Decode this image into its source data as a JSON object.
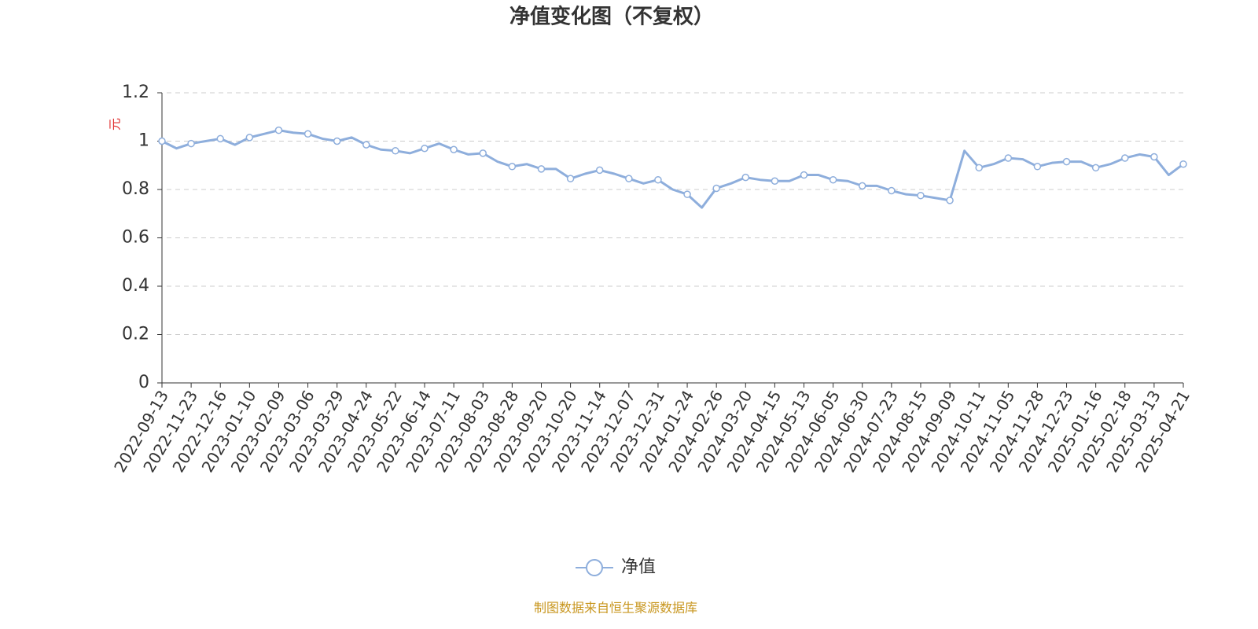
{
  "chart_data": {
    "type": "line",
    "title": "净值变化图（不复权）",
    "y_label": "元",
    "source": "制图数据来自恒生聚源数据库",
    "categories": [
      "2022-09-13",
      null,
      "2022-11-23",
      null,
      "2022-12-16",
      null,
      "2023-01-10",
      null,
      "2023-02-09",
      null,
      "2023-03-06",
      null,
      "2023-03-29",
      null,
      "2023-04-24",
      null,
      "2023-05-22",
      null,
      "2023-06-14",
      null,
      "2023-07-11",
      null,
      "2023-08-03",
      null,
      "2023-08-28",
      null,
      "2023-09-20",
      null,
      "2023-10-20",
      null,
      "2023-11-14",
      null,
      "2023-12-07",
      null,
      "2023-12-31",
      null,
      "2024-01-24",
      null,
      "2024-02-26",
      null,
      "2024-03-20",
      null,
      "2024-04-15",
      null,
      "2024-05-13",
      null,
      "2024-06-05",
      null,
      "2024-06-30",
      null,
      "2024-07-23",
      null,
      "2024-08-15",
      null,
      "2024-09-09",
      null,
      "2024-10-11",
      null,
      "2024-11-05",
      null,
      "2024-11-28",
      null,
      "2024-12-23",
      null,
      "2025-01-16",
      null,
      "2025-02-18",
      null,
      "2025-03-13",
      null,
      "2025-04-21"
    ],
    "series": [
      {
        "name": "净值",
        "color": "#8eaedc",
        "values": [
          1.0,
          0.97,
          0.99,
          1.0,
          1.01,
          0.985,
          1.015,
          1.03,
          1.045,
          1.035,
          1.03,
          1.01,
          1.0,
          1.015,
          0.985,
          0.965,
          0.96,
          0.95,
          0.97,
          0.99,
          0.965,
          0.945,
          0.95,
          0.915,
          0.895,
          0.905,
          0.885,
          0.885,
          0.845,
          0.865,
          0.88,
          0.865,
          0.845,
          0.825,
          0.84,
          0.8,
          0.78,
          0.725,
          0.805,
          0.825,
          0.85,
          0.84,
          0.835,
          0.835,
          0.86,
          0.86,
          0.84,
          0.835,
          0.815,
          0.815,
          0.795,
          0.78,
          0.775,
          0.765,
          0.755,
          0.96,
          0.89,
          0.905,
          0.93,
          0.925,
          0.895,
          0.91,
          0.915,
          0.915,
          0.89,
          0.905,
          0.93,
          0.945,
          0.935,
          0.86,
          0.905
        ]
      }
    ],
    "ylim": [
      0,
      1.2
    ],
    "yticks": [
      0,
      0.2,
      0.4,
      0.6,
      0.8,
      1,
      1.2
    ],
    "grid": true,
    "legend": "bottom"
  }
}
